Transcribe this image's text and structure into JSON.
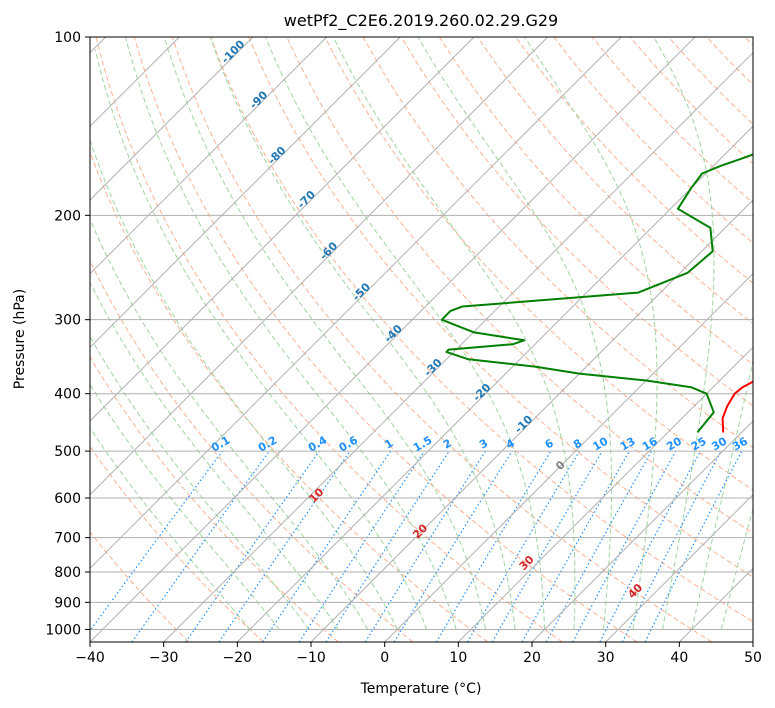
{
  "chart_data": {
    "type": "line",
    "title": "wetPf2_C2E6.2019.260.02.29.G29",
    "xlabel": "Temperature (°C)",
    "ylabel": "Pressure (hPa)",
    "xlim": [
      -40,
      50
    ],
    "ylim": [
      1050,
      100
    ],
    "y_scale": "log",
    "grid": true,
    "x_ticks": [
      "−40",
      "−30",
      "−20",
      "−10",
      "0",
      "10",
      "20",
      "30",
      "40",
      "50"
    ],
    "y_ticks": [
      "100",
      "200",
      "300",
      "400",
      "500",
      "600",
      "700",
      "800",
      "900",
      "1000"
    ],
    "series": [
      {
        "role": "temperature",
        "color": "#ff0000",
        "p": [
          465,
          440,
          420,
          400,
          390,
          380,
          370,
          360,
          350,
          340,
          320,
          300,
          280,
          260,
          240,
          220,
          200,
          180,
          165,
          150,
          140,
          130,
          120,
          110,
          100
        ],
        "t": [
          17.5,
          15.5,
          14.5,
          13.8,
          14.0,
          14.8,
          15.3,
          15.3,
          15.6,
          15.6,
          16.0,
          16.5,
          16.4,
          15.5,
          14.1,
          12.9,
          11.6,
          10.2,
          9.6,
          9.0,
          8.7,
          8.6,
          9.0,
          9.5,
          10.0
        ]
      },
      {
        "role": "dewpoint",
        "color": "#008000",
        "p": [
          465,
          430,
          400,
          390,
          380,
          370,
          360,
          350,
          340,
          337,
          330,
          325,
          315,
          300,
          290,
          285,
          270,
          250,
          230,
          210,
          195,
          180,
          170,
          165,
          160,
          150,
          140,
          130,
          120,
          110,
          100
        ],
        "t": [
          14.0,
          13.5,
          10.0,
          7.0,
          0.0,
          -10.0,
          -17.0,
          -27.0,
          -31.0,
          -31.0,
          -23.0,
          -22.0,
          -30.0,
          -36.0,
          -36.0,
          -35.0,
          -13.0,
          -9.0,
          -8.5,
          -12.0,
          -19.0,
          -20.0,
          -20.5,
          -19.0,
          -17.0,
          -13.0,
          -10.5,
          -9.5,
          -7.0,
          -3.5,
          0.0
        ]
      }
    ],
    "annotations": {
      "isotherm_labels": [
        "-100",
        "-90",
        "-80",
        "-70",
        "-60",
        "-50",
        "-40",
        "-30",
        "-20",
        "-10"
      ],
      "mixing_ratio_labels": [
        "0.1",
        "0.2",
        "0.4",
        "0.6",
        "1",
        "1.5",
        "2",
        "3",
        "4",
        "6",
        "8",
        "10",
        "13",
        "16",
        "20",
        "25",
        "30",
        "36"
      ],
      "dry_adiabat_labels": [
        "10",
        "20",
        "30",
        "40"
      ],
      "moist_adiabat_labels": [
        "0"
      ]
    }
  }
}
